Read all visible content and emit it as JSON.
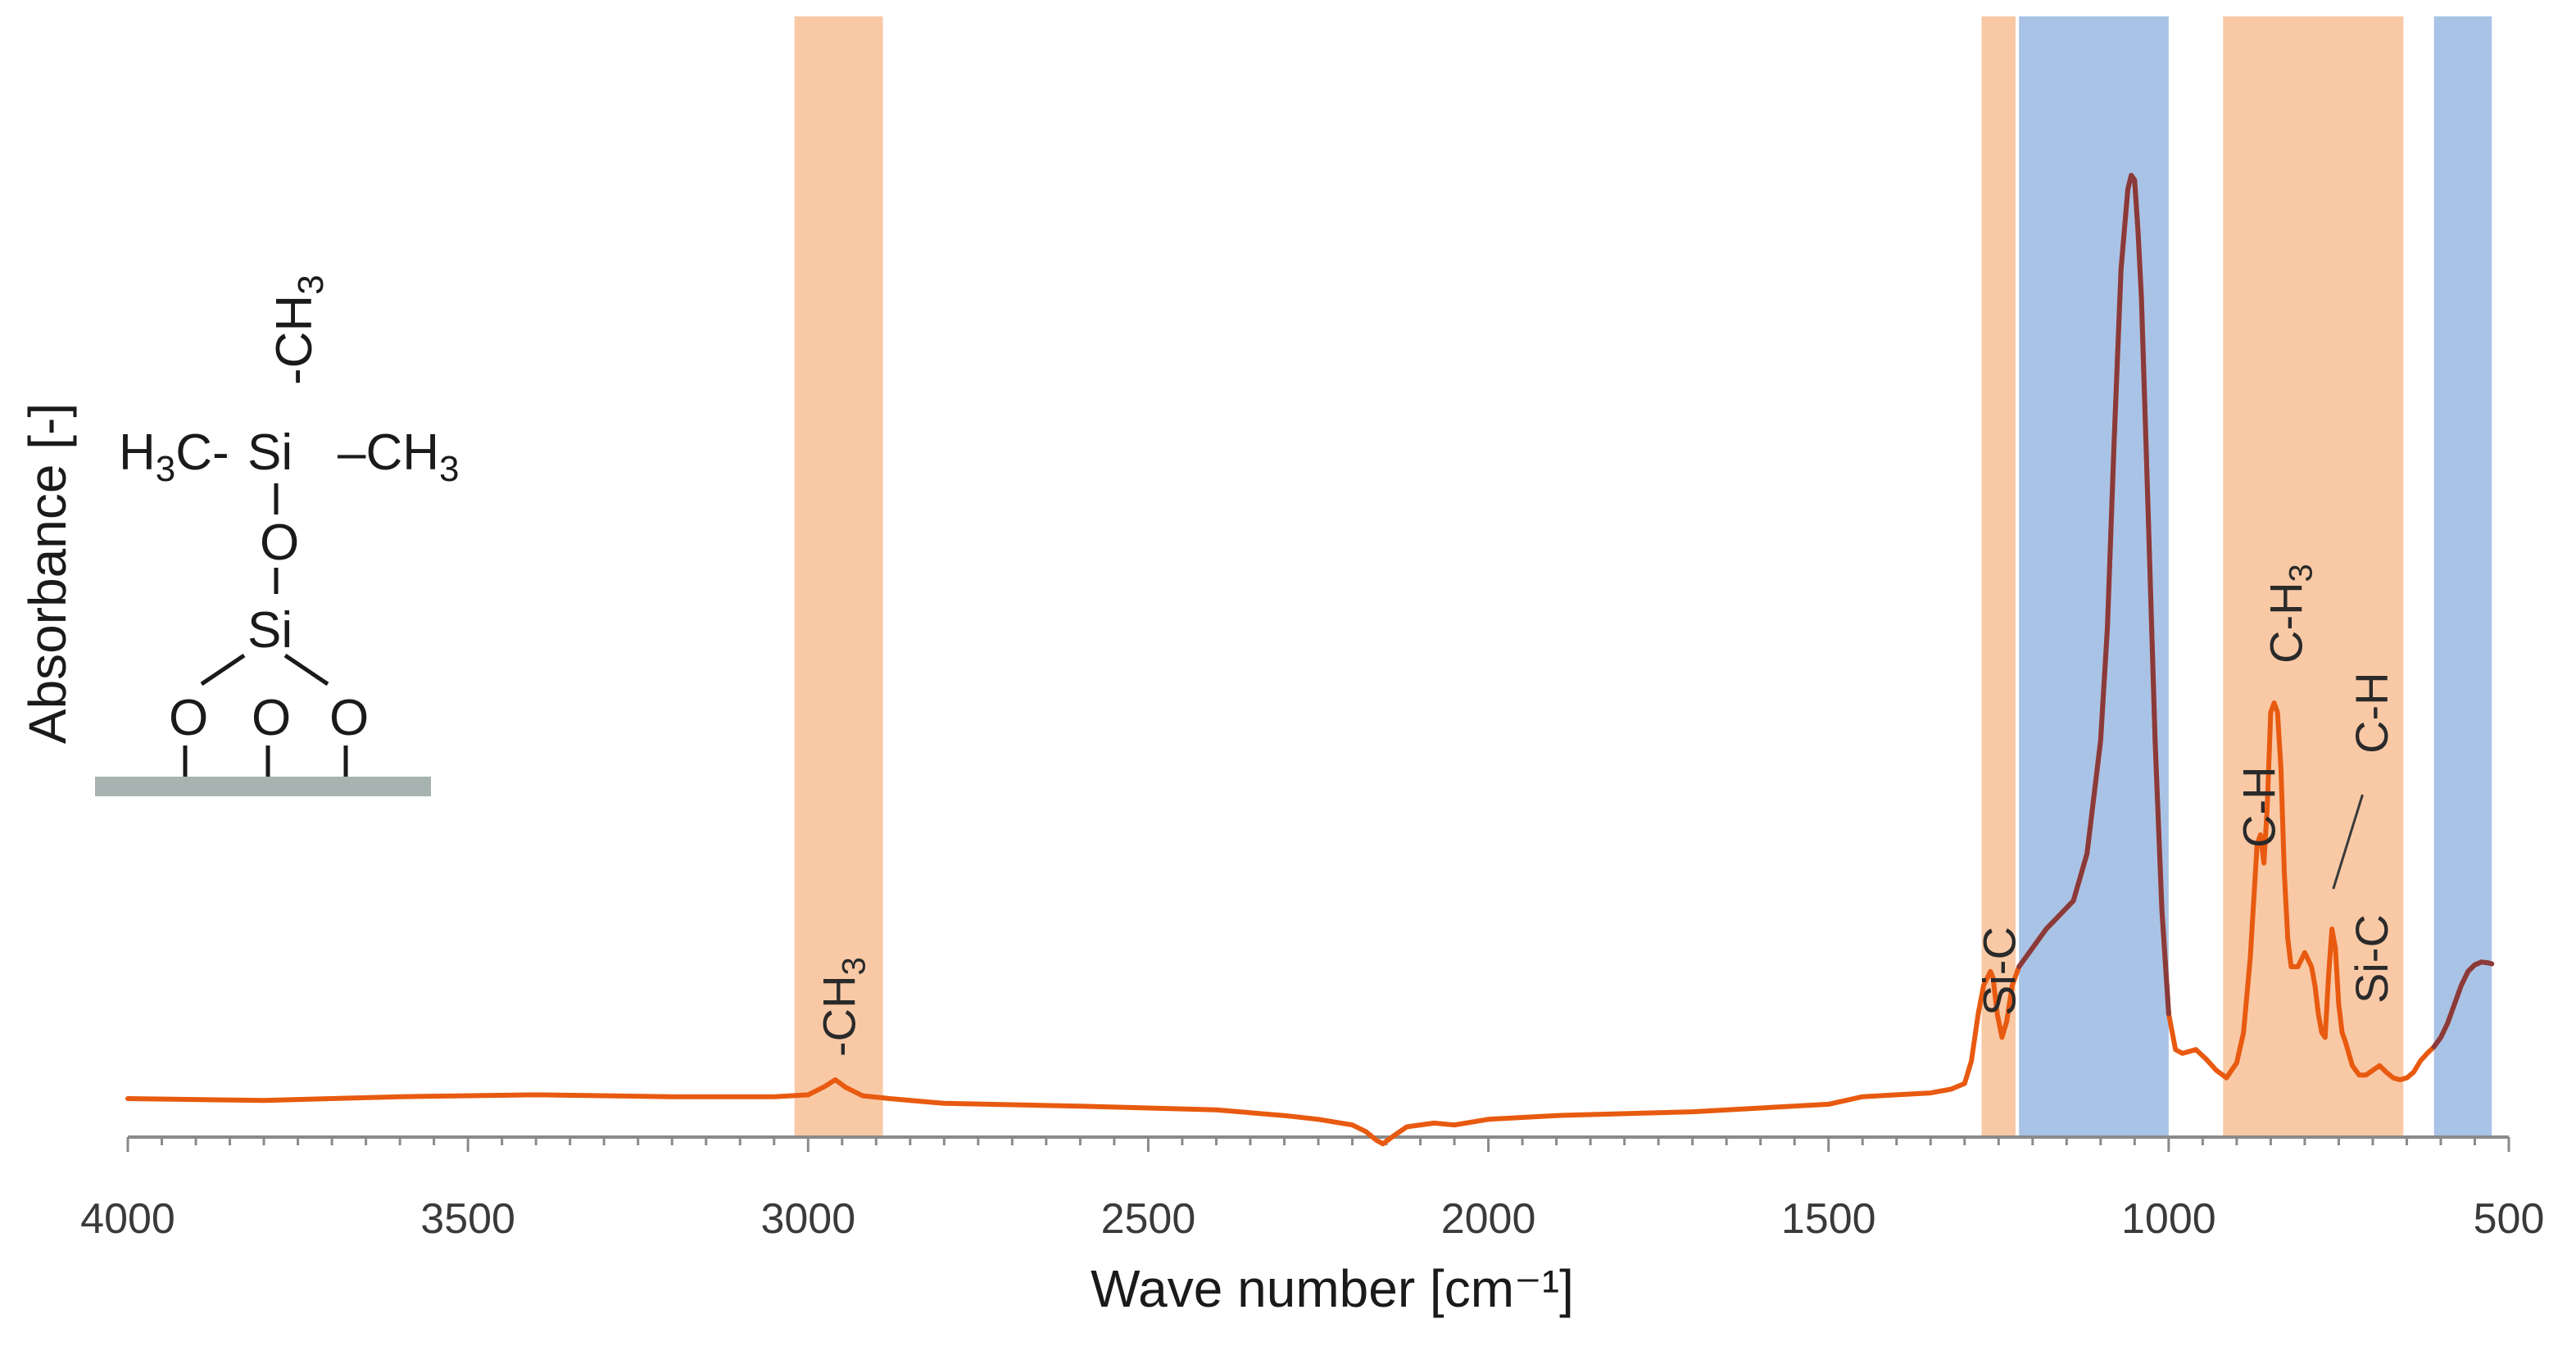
{
  "chart_data": {
    "type": "line",
    "title": "",
    "xlabel": "Wave number [cm⁻¹]",
    "ylabel": "Absorbance [-]",
    "x_reversed": true,
    "xlim": [
      4000,
      500
    ],
    "ylim": [
      0,
      1
    ],
    "xticks": [
      4000,
      3500,
      3000,
      2500,
      2000,
      1500,
      1000,
      500
    ],
    "xtick_labels": [
      "4000",
      "3500",
      "3000",
      "2500",
      "2000",
      "1500",
      "1000",
      "500"
    ],
    "grid": false,
    "legend": "none",
    "colors": {
      "spectrum": "#e85a10",
      "spectrum_dark": "#8b3a3a",
      "band_orange": "#f9c9a6",
      "band_blue": "#a9c3e6",
      "axis": "#8a8a8a",
      "substrate": "#a7b3b0"
    },
    "bands": [
      {
        "from": 3020,
        "to": 2890,
        "color": "orange",
        "label": "-CH",
        "label_sub": "3"
      },
      {
        "from": 1275,
        "to": 1225,
        "color": "orange",
        "label": "Si-C",
        "label_sub": ""
      },
      {
        "from": 1220,
        "to": 1000,
        "color": "blue",
        "label": "",
        "label_sub": ""
      },
      {
        "from": 920,
        "to": 655,
        "color": "orange",
        "label": "",
        "label_sub": ""
      },
      {
        "from": 610,
        "to": 525,
        "color": "blue",
        "label": "",
        "label_sub": ""
      }
    ],
    "annotations": [
      {
        "text": "C-H",
        "sub": "",
        "x": 868
      },
      {
        "text": "C-H",
        "sub": "3",
        "x": 828
      },
      {
        "text": "C-H",
        "sub": "",
        "x": 700
      },
      {
        "text": "Si-C",
        "sub": "",
        "x": 700
      }
    ],
    "series": [
      {
        "x": [
          4000,
          3800,
          3600,
          3400,
          3200,
          3050,
          3000,
          2975,
          2960,
          2945,
          2920,
          2880,
          2800,
          2600,
          2400,
          2300,
          2250,
          2200,
          2180,
          2165,
          2155,
          2140,
          2120,
          2080,
          2050,
          2000,
          1900,
          1800,
          1700,
          1600,
          1500,
          1450,
          1400,
          1350,
          1320,
          1300,
          1290,
          1280,
          1272,
          1262,
          1258,
          1252,
          1245,
          1238,
          1230,
          1220,
          1200,
          1180,
          1160,
          1140,
          1120,
          1100,
          1090,
          1080,
          1070,
          1060,
          1055,
          1050,
          1045,
          1040,
          1030,
          1020,
          1010,
          1000,
          990,
          980,
          960,
          945,
          930,
          915,
          900,
          890,
          880,
          870,
          865,
          860,
          855,
          850,
          845,
          840,
          835,
          830,
          825,
          820,
          810,
          800,
          790,
          785,
          780,
          775,
          770,
          765,
          760,
          755,
          750,
          745,
          740,
          730,
          720,
          710,
          700,
          690,
          680,
          670,
          660,
          650,
          640,
          630,
          620,
          610,
          600,
          590,
          580,
          570,
          560,
          550,
          540,
          530,
          525
        ],
        "y": [
          0.02,
          0.018,
          0.022,
          0.024,
          0.022,
          0.022,
          0.024,
          0.033,
          0.04,
          0.032,
          0.023,
          0.02,
          0.015,
          0.012,
          0.008,
          0.002,
          -0.002,
          -0.008,
          -0.015,
          -0.024,
          -0.028,
          -0.02,
          -0.01,
          -0.006,
          -0.008,
          -0.002,
          0.002,
          0.004,
          0.006,
          0.01,
          0.014,
          0.022,
          0.024,
          0.026,
          0.03,
          0.036,
          0.06,
          0.11,
          0.14,
          0.155,
          0.148,
          0.11,
          0.085,
          0.102,
          0.14,
          0.16,
          0.18,
          0.2,
          0.215,
          0.23,
          0.28,
          0.4,
          0.52,
          0.72,
          0.9,
          0.985,
          1.0,
          0.995,
          0.94,
          0.87,
          0.64,
          0.4,
          0.22,
          0.11,
          0.072,
          0.068,
          0.072,
          0.062,
          0.05,
          0.042,
          0.058,
          0.09,
          0.17,
          0.29,
          0.3,
          0.27,
          0.33,
          0.43,
          0.44,
          0.43,
          0.37,
          0.26,
          0.19,
          0.16,
          0.16,
          0.175,
          0.16,
          0.14,
          0.11,
          0.09,
          0.085,
          0.15,
          0.2,
          0.18,
          0.12,
          0.09,
          0.08,
          0.055,
          0.045,
          0.045,
          0.05,
          0.055,
          0.048,
          0.042,
          0.04,
          0.042,
          0.048,
          0.06,
          0.068,
          0.075,
          0.085,
          0.1,
          0.12,
          0.14,
          0.155,
          0.162,
          0.165,
          0.164,
          0.163
        ]
      }
    ]
  },
  "molecule": {
    "substituent_top": "-CH",
    "substituent_top_sub": "3",
    "left_group": "H",
    "left_group_sub": "3",
    "left_group_tail": "C-",
    "center_atom": "Si",
    "right_group": "–CH",
    "right_group_sub": "3",
    "bridge_oxygen": "O",
    "lower_center_atom": "Si",
    "base_oxygens": [
      "O",
      "O",
      "O"
    ]
  }
}
